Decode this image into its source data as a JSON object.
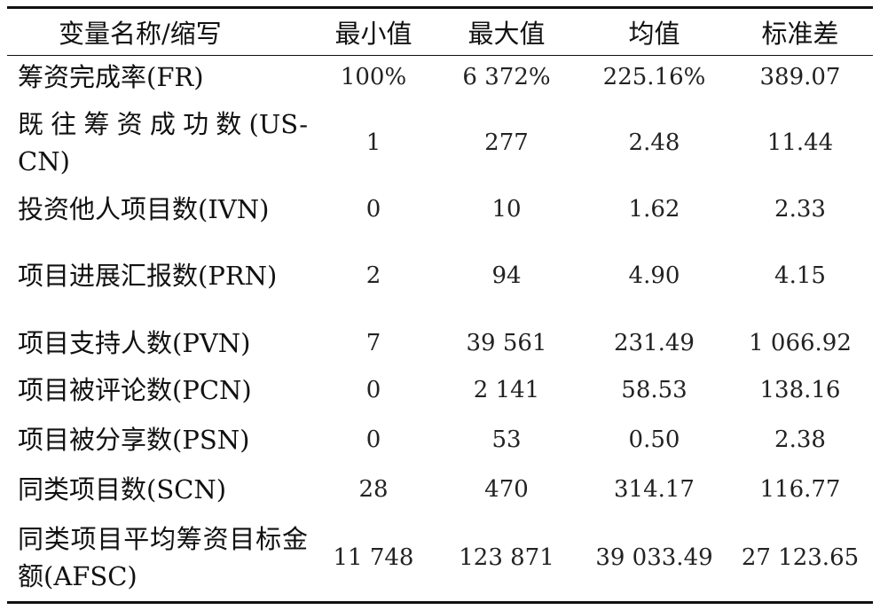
{
  "table": {
    "header": [
      "变量名称/缩写",
      "最小值",
      "最大值",
      "均值",
      "标准差"
    ],
    "rows": [
      [
        "筹资完成率(FR)",
        "100%",
        "6 372%",
        "225.16%",
        "389.07"
      ],
      [
        "既往筹资成功数(US-CN)",
        "1",
        "277",
        "2.48",
        "11.44"
      ],
      [
        "投资他人项目数(IVN)",
        "0",
        "10",
        "1.62",
        "2.33"
      ],
      [
        "项目进展汇报数(PRN)",
        "2",
        "94",
        "4.90",
        "4.15"
      ],
      [
        "项目支持人数(PVN)",
        "7",
        "39 561",
        "231.49",
        "1 066.92"
      ],
      [
        "项目被评论数(PCN)",
        "0",
        "2 141",
        "58.53",
        "138.16"
      ],
      [
        "项目被分享数(PSN)",
        "0",
        "53",
        "0.50",
        "2.38"
      ],
      [
        "同类项目数(SCN)",
        "28",
        "470",
        "314.17",
        "116.77"
      ],
      [
        "同类项目平均筹资目标金额(AFSC)",
        "11 748",
        "123 871",
        "39 033.49",
        "27 123.65"
      ]
    ]
  }
}
